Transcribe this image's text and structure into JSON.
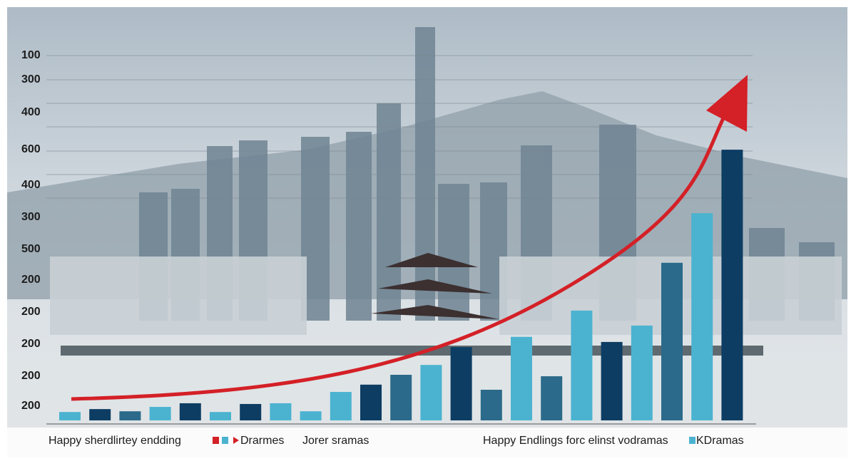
{
  "chart_data": {
    "type": "bar",
    "y_axis_labels": [
      "100",
      "300",
      "400",
      "600",
      "400",
      "300",
      "500",
      "200",
      "200",
      "200",
      "200",
      "200"
    ],
    "values": [
      2.3,
      3.1,
      2.5,
      3.7,
      4.7,
      2.3,
      4.5,
      4.7,
      2.5,
      7.8,
      9.8,
      12.5,
      15.2,
      20.1,
      8.4,
      22.9,
      12.1,
      30.1,
      21.5,
      26,
      43.2,
      56.8,
      74.2
    ],
    "colors": [
      "#4bb3d0",
      "#0d3d63",
      "#2b6a8a",
      "#4bb3d0",
      "#0d3d63",
      "#4bb3d0",
      "#0d3d63",
      "#4bb3d0",
      "#4bb3d0",
      "#4bb3d0",
      "#0d3d63",
      "#2b6a8a",
      "#4bb3d0",
      "#0d3d63",
      "#2b6a8a",
      "#4bb3d0",
      "#2b6a8a",
      "#4bb3d0",
      "#0d3d63",
      "#4bb3d0",
      "#2b6a8a",
      "#4bb3d0",
      "#0d3d63"
    ],
    "ylim": [
      0,
      100
    ],
    "legend": [
      "Happy sherdlirtey endding",
      "Drarmes",
      "Jorer sramas",
      "Happy Endlings forc elinst vodramas",
      "KDramas"
    ]
  }
}
